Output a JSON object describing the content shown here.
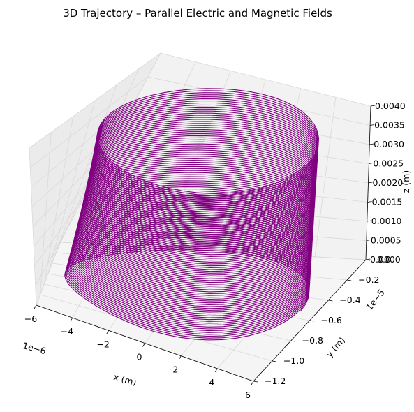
{
  "chart_data": {
    "type": "line",
    "projection": "3d",
    "title": "3D Trajectory – Parallel Electric and Magnetic Fields",
    "xlabel": "x (m)",
    "ylabel": "y (m)",
    "zlabel": "z (m)",
    "x_offset_text": "1e−6",
    "y_offset_text": "1e−5",
    "x_ticks": [
      "−6",
      "−4",
      "−2",
      "0",
      "2",
      "4",
      "6"
    ],
    "y_ticks": [
      "0.0",
      "−0.2",
      "−0.4",
      "−0.6",
      "−0.8",
      "−1.0",
      "−1.2"
    ],
    "z_ticks": [
      "0.0000",
      "0.0005",
      "0.0010",
      "0.0015",
      "0.0020",
      "0.0025",
      "0.0030",
      "0.0035",
      "0.0040"
    ],
    "xlim": [
      -6e-06,
      6e-06
    ],
    "ylim": [
      -1.2e-05,
      0.0
    ],
    "zlim": [
      0.0,
      0.004
    ],
    "grid": true,
    "legend": "none",
    "series": [
      {
        "color": "#800080",
        "shape": "helix",
        "x_center": 0.0,
        "y_center": -5.3e-06,
        "radius": 5.3e-06,
        "z_start": 0.0,
        "z_end": 0.0037,
        "turns": 80
      }
    ]
  }
}
